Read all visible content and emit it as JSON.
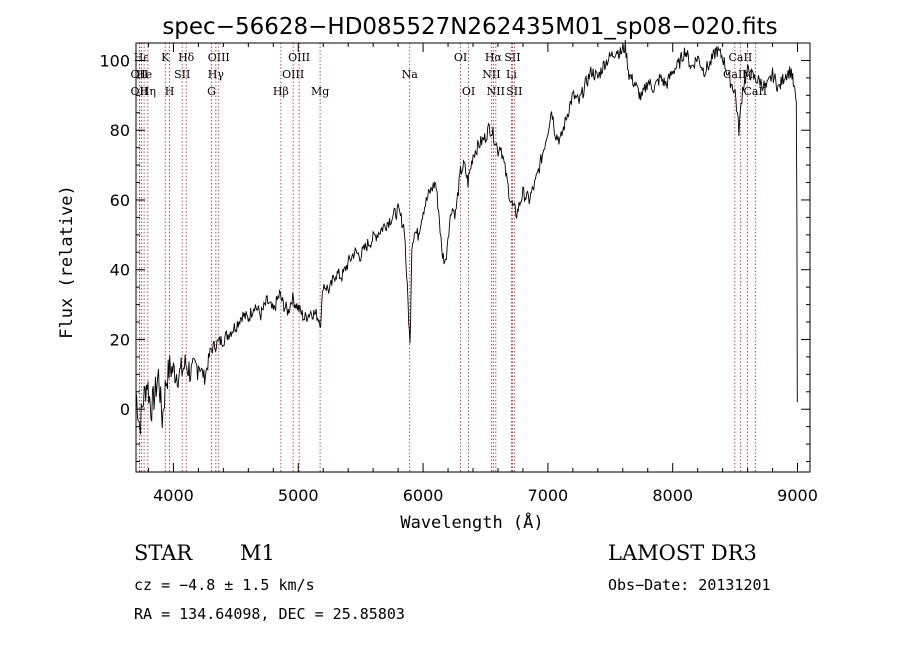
{
  "chart_data": {
    "type": "line",
    "title": "spec−56628−HD085527N262435M01_sp08−020.fits",
    "xlabel": "Wavelength (Å)",
    "ylabel": "Flux (relative)",
    "xlim": [
      3700,
      9100
    ],
    "ylim": [
      -18,
      105
    ],
    "x_ticks": [
      4000,
      5000,
      6000,
      7000,
      8000,
      9000
    ],
    "y_ticks": [
      0,
      20,
      40,
      60,
      80,
      100
    ],
    "series": [
      {
        "name": "spectrum",
        "x": [
          3700,
          3730,
          3760,
          3790,
          3820,
          3850,
          3880,
          3910,
          3940,
          3970,
          4000,
          4050,
          4100,
          4150,
          4200,
          4250,
          4300,
          4350,
          4400,
          4450,
          4500,
          4550,
          4600,
          4650,
          4700,
          4750,
          4800,
          4850,
          4880,
          4920,
          4950,
          5000,
          5050,
          5100,
          5150,
          5180,
          5200,
          5250,
          5300,
          5350,
          5400,
          5450,
          5500,
          5550,
          5600,
          5650,
          5700,
          5750,
          5800,
          5850,
          5880,
          5895,
          5910,
          5930,
          5960,
          6000,
          6050,
          6100,
          6130,
          6150,
          6180,
          6200,
          6230,
          6260,
          6300,
          6330,
          6360,
          6400,
          6450,
          6500,
          6530,
          6560,
          6580,
          6600,
          6620,
          6650,
          6700,
          6720,
          6750,
          6800,
          6850,
          6900,
          6950,
          7000,
          7030,
          7060,
          7100,
          7150,
          7200,
          7250,
          7300,
          7350,
          7400,
          7450,
          7500,
          7550,
          7580,
          7620,
          7650,
          7700,
          7750,
          7800,
          7850,
          7900,
          7950,
          8000,
          8050,
          8100,
          8150,
          8200,
          8250,
          8300,
          8350,
          8400,
          8450,
          8500,
          8530,
          8560,
          8600,
          8650,
          8700,
          8750,
          8800,
          8850,
          8900,
          8950,
          8990,
          8995,
          8998
        ],
        "y": [
          5,
          -5,
          3,
          8,
          0,
          4,
          10,
          -3,
          8,
          12,
          11,
          10,
          13,
          10,
          13,
          9,
          17,
          19,
          20,
          22,
          24,
          27,
          26,
          30,
          27,
          31,
          28,
          33,
          30,
          28,
          32,
          29,
          26,
          28,
          27,
          25,
          36,
          34,
          39,
          38,
          42,
          45,
          44,
          47,
          49,
          51,
          53,
          55,
          57,
          52,
          30,
          18,
          47,
          51,
          50,
          57,
          62,
          65,
          55,
          45,
          42,
          50,
          58,
          56,
          68,
          70,
          65,
          73,
          76,
          78,
          81,
          79,
          77,
          74,
          76,
          70,
          60,
          58,
          56,
          62,
          60,
          65,
          72,
          80,
          86,
          79,
          77,
          84,
          90,
          88,
          93,
          97,
          95,
          99,
          101,
          103,
          102,
          104,
          96,
          93,
          89,
          94,
          92,
          95,
          93,
          97,
          99,
          103,
          98,
          101,
          97,
          99,
          103,
          101,
          95,
          91,
          80,
          92,
          97,
          95,
          94,
          92,
          96,
          92,
          96,
          97,
          88,
          55,
          2
        ]
      }
    ],
    "emission_lines": [
      {
        "label": "Hε",
        "x": 3743,
        "row": 1
      },
      {
        "label": "OII",
        "x": 3727,
        "row": 2
      },
      {
        "label": "OII",
        "x": 3727,
        "row": 3
      },
      {
        "label": "He",
        "x": 3765,
        "row": 2
      },
      {
        "label": "Hη",
        "x": 3795,
        "row": 3
      },
      {
        "label": "K",
        "x": 3934,
        "row": 1
      },
      {
        "label": "H",
        "x": 3969,
        "row": 3
      },
      {
        "label": "SII",
        "x": 4070,
        "row": 2
      },
      {
        "label": "Hδ",
        "x": 4102,
        "row": 1
      },
      {
        "label": "OIII",
        "x": 4363,
        "row": 1
      },
      {
        "label": "Hγ",
        "x": 4340,
        "row": 2
      },
      {
        "label": "G",
        "x": 4305,
        "row": 3
      },
      {
        "label": "Hβ",
        "x": 4861,
        "row": 3
      },
      {
        "label": "OIII",
        "x": 5007,
        "row": 1
      },
      {
        "label": "OIII",
        "x": 4959,
        "row": 2
      },
      {
        "label": "Mg",
        "x": 5175,
        "row": 3
      },
      {
        "label": "Na",
        "x": 5893,
        "row": 2
      },
      {
        "label": "OI",
        "x": 6300,
        "row": 1
      },
      {
        "label": "OI",
        "x": 6364,
        "row": 3
      },
      {
        "label": "Hα",
        "x": 6563,
        "row": 1
      },
      {
        "label": "SII",
        "x": 6716,
        "row": 1
      },
      {
        "label": "NII",
        "x": 6548,
        "row": 2
      },
      {
        "label": "Li",
        "x": 6708,
        "row": 2
      },
      {
        "label": "NII",
        "x": 6583,
        "row": 3
      },
      {
        "label": "SII",
        "x": 6731,
        "row": 3
      },
      {
        "label": "CaII",
        "x": 8542,
        "row": 1
      },
      {
        "label": "CaII",
        "x": 8498,
        "row": 2
      },
      {
        "label": "M",
        "x": 8600,
        "row": 2
      },
      {
        "label": "CaII",
        "x": 8662,
        "row": 3
      }
    ]
  },
  "info": {
    "class": "STAR",
    "subclass": "M1",
    "survey": "LAMOST DR3",
    "cz": "cz = −4.8 ± 1.5 km/s",
    "obs_date": "Obs−Date: 20131201",
    "coords": "RA = 134.64098, DEC =  25.85803"
  }
}
